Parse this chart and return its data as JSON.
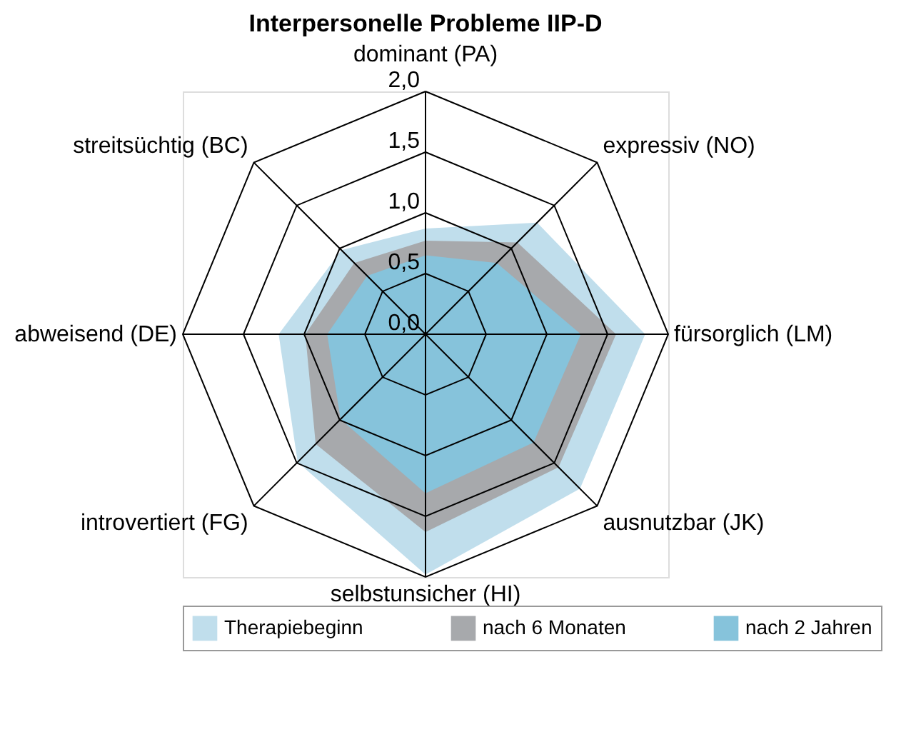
{
  "chart_data": {
    "type": "radar",
    "title": "Interpersonelle Probleme IIP-D",
    "categories": [
      "dominant (PA)",
      "expressiv (NO)",
      "fürsorglich (LM)",
      "ausnutzbar (JK)",
      "selbstunsicher (HI)",
      "introvertiert (FG)",
      "abweisend (DE)",
      "streitsüchtig (BC)"
    ],
    "series": [
      {
        "name": "Therapiebeginn",
        "color": "#c0deec",
        "values": [
          0.87,
          1.3,
          1.81,
          1.8,
          1.98,
          1.49,
          1.21,
          0.98
        ]
      },
      {
        "name": "nach 6 Monaten",
        "color": "#a7a9ac",
        "values": [
          0.77,
          1.07,
          1.57,
          1.55,
          1.63,
          1.28,
          0.99,
          0.83
        ]
      },
      {
        "name": "nach 2 Jahren",
        "color": "#86c3db",
        "values": [
          0.65,
          0.83,
          1.28,
          1.26,
          1.31,
          0.99,
          0.81,
          0.68
        ]
      }
    ],
    "ylim": [
      0,
      2
    ],
    "yticks": [
      {
        "value": 0,
        "label": "0,0"
      },
      {
        "value": 0.5,
        "label": "0,5"
      },
      {
        "value": 1,
        "label": "1,0"
      },
      {
        "value": 1.5,
        "label": "1,5"
      },
      {
        "value": 2,
        "label": "2,0"
      }
    ],
    "legend": "bottom",
    "grid": true
  }
}
